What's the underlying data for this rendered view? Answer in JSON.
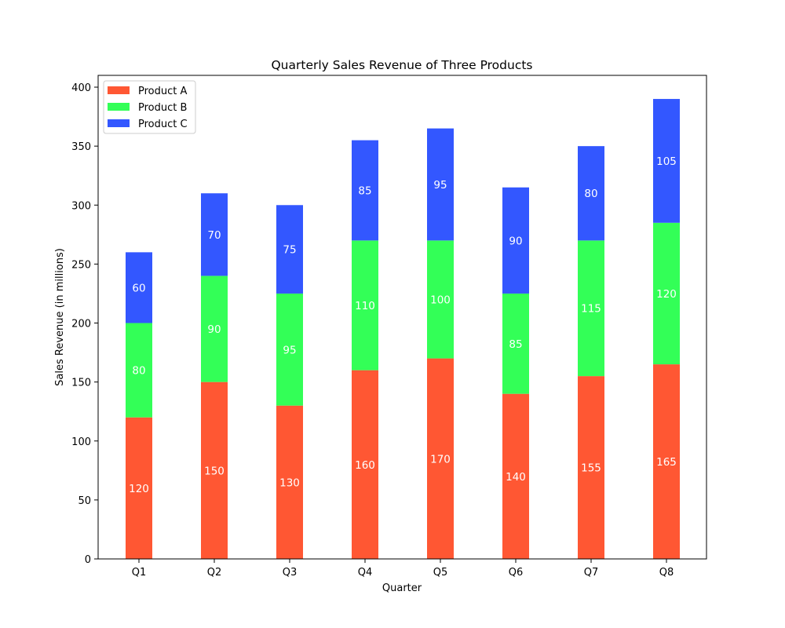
{
  "chart_data": {
    "type": "bar",
    "stacked": true,
    "title": "Quarterly Sales Revenue of Three Products",
    "xlabel": "Quarter",
    "ylabel": "Sales Revenue (in millions)",
    "categories": [
      "Q1",
      "Q2",
      "Q3",
      "Q4",
      "Q5",
      "Q6",
      "Q7",
      "Q8"
    ],
    "series": [
      {
        "name": "Product A",
        "color": "#FF5733",
        "values": [
          120,
          150,
          130,
          160,
          170,
          140,
          155,
          165
        ]
      },
      {
        "name": "Product B",
        "color": "#33FF57",
        "values": [
          80,
          90,
          95,
          110,
          100,
          85,
          115,
          120
        ]
      },
      {
        "name": "Product C",
        "color": "#3357FF",
        "values": [
          60,
          70,
          75,
          85,
          95,
          90,
          80,
          105
        ]
      }
    ],
    "ylim": [
      0,
      410
    ],
    "yticks": [
      0,
      50,
      100,
      150,
      200,
      250,
      300,
      350,
      400
    ],
    "grid": false,
    "legend_position": "top-left",
    "data_label_color": "#FFFFFF"
  }
}
